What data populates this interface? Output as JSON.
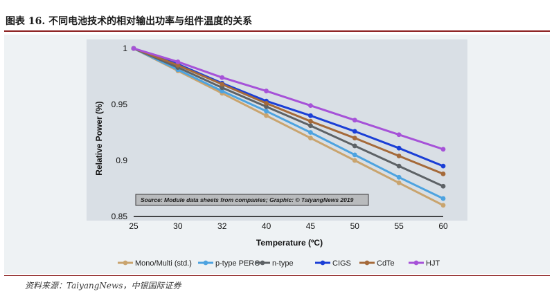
{
  "page": {
    "title": "图表 16. 不同电池技术的相对输出功率与组件温度的关系",
    "source": "资料来源：TaiyangNews，中银国际证券",
    "accent_color": "#8a1c1c",
    "plot_background": "#d9dfe5",
    "outer_background": "#eef2f4"
  },
  "chart_data": {
    "type": "line",
    "xlabel": "Temperature (ºC)",
    "ylabel": "Relative Power (%)",
    "categories": [
      "25",
      "30",
      "32",
      "40",
      "45",
      "50",
      "55",
      "60"
    ],
    "ylim": [
      0.85,
      1.0
    ],
    "yticks": [
      0.85,
      0.9,
      0.95,
      1
    ],
    "ytick_labels": [
      "0.85",
      "0.9",
      "0.95",
      "1"
    ],
    "legend_position": "bottom",
    "annotation": "Source: Module data sheets from companies; Graphic: © TaiyangNews 2019",
    "series": [
      {
        "name": "Mono/Multi (std.)",
        "color": "#c9a46e",
        "values": [
          1.0,
          0.98,
          0.96,
          0.94,
          0.92,
          0.9,
          0.88,
          0.86
        ]
      },
      {
        "name": "p-type PERC",
        "color": "#4da3e0",
        "values": [
          1.0,
          0.981,
          0.962,
          0.944,
          0.925,
          0.905,
          0.885,
          0.866
        ]
      },
      {
        "name": "n-type",
        "color": "#5d6266",
        "values": [
          1.0,
          0.983,
          0.965,
          0.948,
          0.931,
          0.913,
          0.895,
          0.877
        ]
      },
      {
        "name": "CIGS",
        "color": "#1b3fd6",
        "values": [
          1.0,
          0.986,
          0.969,
          0.953,
          0.94,
          0.926,
          0.911,
          0.895
        ]
      },
      {
        "name": "CdTe",
        "color": "#a56a3a",
        "values": [
          1.0,
          0.985,
          0.968,
          0.951,
          0.935,
          0.92,
          0.904,
          0.888
        ]
      },
      {
        "name": "HJT",
        "color": "#a652d8",
        "values": [
          1.0,
          0.988,
          0.974,
          0.962,
          0.949,
          0.936,
          0.923,
          0.91
        ]
      }
    ]
  }
}
